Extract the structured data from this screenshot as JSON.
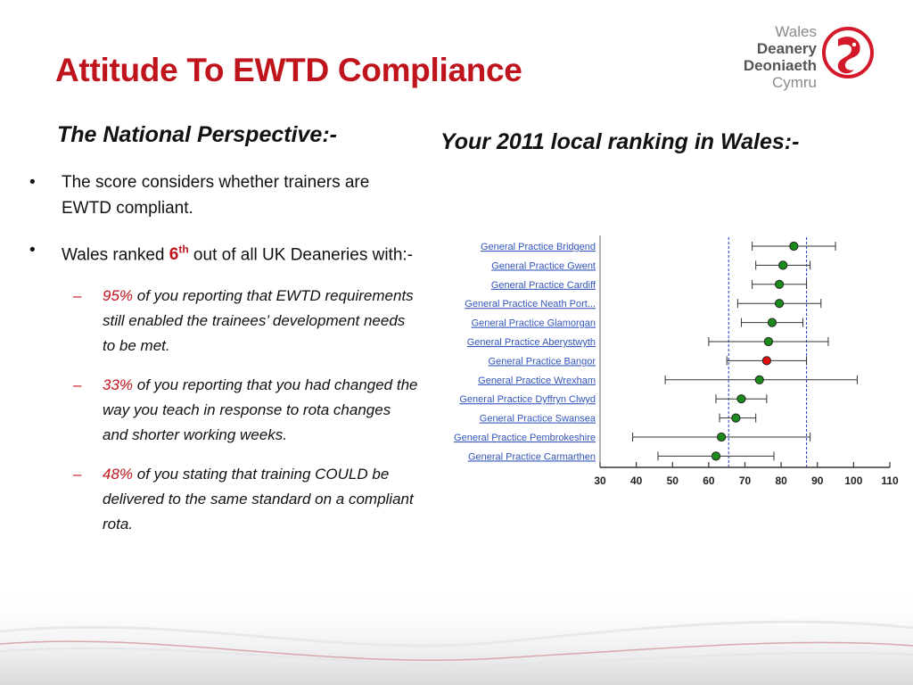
{
  "slide": {
    "title": "Attitude To EWTD Compliance",
    "logo": {
      "line1": "Wales",
      "line2": "Deanery",
      "line3": "Deoniaeth",
      "line4": "Cymru"
    },
    "left_heading": "The National Perspective:-",
    "right_heading": "Your 2011 local ranking in Wales:-",
    "bullet1": "The score considers whether trainers are EWTD compliant.",
    "bullet2": {
      "prefix": "Wales ranked ",
      "rank": "6",
      "rank_suffix": "th",
      "suffix": " out of all UK Deaneries with:-"
    },
    "sub_bullets": [
      {
        "pct": "95%",
        "text": " of you reporting that EWTD requirements still enabled the trainees’ development needs to be met."
      },
      {
        "pct": "33%",
        "text": "  of you reporting that you had changed the way you teach in response to rota changes and shorter working weeks."
      },
      {
        "pct": "48%",
        "text": " of you stating that training COULD be delivered to the same standard on a compliant rota."
      }
    ],
    "dash_glyph": "–",
    "bullet_glyph": "•",
    "colors": {
      "title_red": "#c0141c",
      "point_green": "#1a8a1a",
      "point_red": "#e01010",
      "reference_line_blue": "#2b3bd6",
      "link_blue": "#3355bb"
    }
  },
  "chart_data": {
    "type": "scatter",
    "orientation": "horizontal",
    "categories": [
      "General Practice Bridgend",
      "General Practice Gwent",
      "General Practice Cardiff",
      "General Practice Neath Port...",
      "General Practice Glamorgan",
      "General Practice Aberystwyth",
      "General Practice Bangor",
      "General Practice Wrexham",
      "General Practice Dyffryn Clwyd",
      "General Practice Swansea",
      "General Practice Pembrokeshire",
      "General Practice Carmarthen"
    ],
    "values": [
      83.5,
      80.5,
      79.5,
      79.5,
      77.5,
      76.5,
      76,
      74,
      69,
      67.5,
      63.5,
      62
    ],
    "lower": [
      72,
      73,
      72,
      68,
      69,
      60,
      65,
      48,
      62,
      63,
      39,
      46
    ],
    "upper": [
      95,
      88,
      87,
      91,
      86,
      93,
      87,
      101,
      76,
      73,
      88,
      78
    ],
    "highlight": "General Practice Bangor",
    "reference_lines": [
      65.5,
      87
    ],
    "xlim": [
      30,
      110
    ],
    "xticks": [
      "30",
      "40",
      "50",
      "60",
      "70",
      "80",
      "90",
      "100",
      "110"
    ],
    "grid": false
  }
}
